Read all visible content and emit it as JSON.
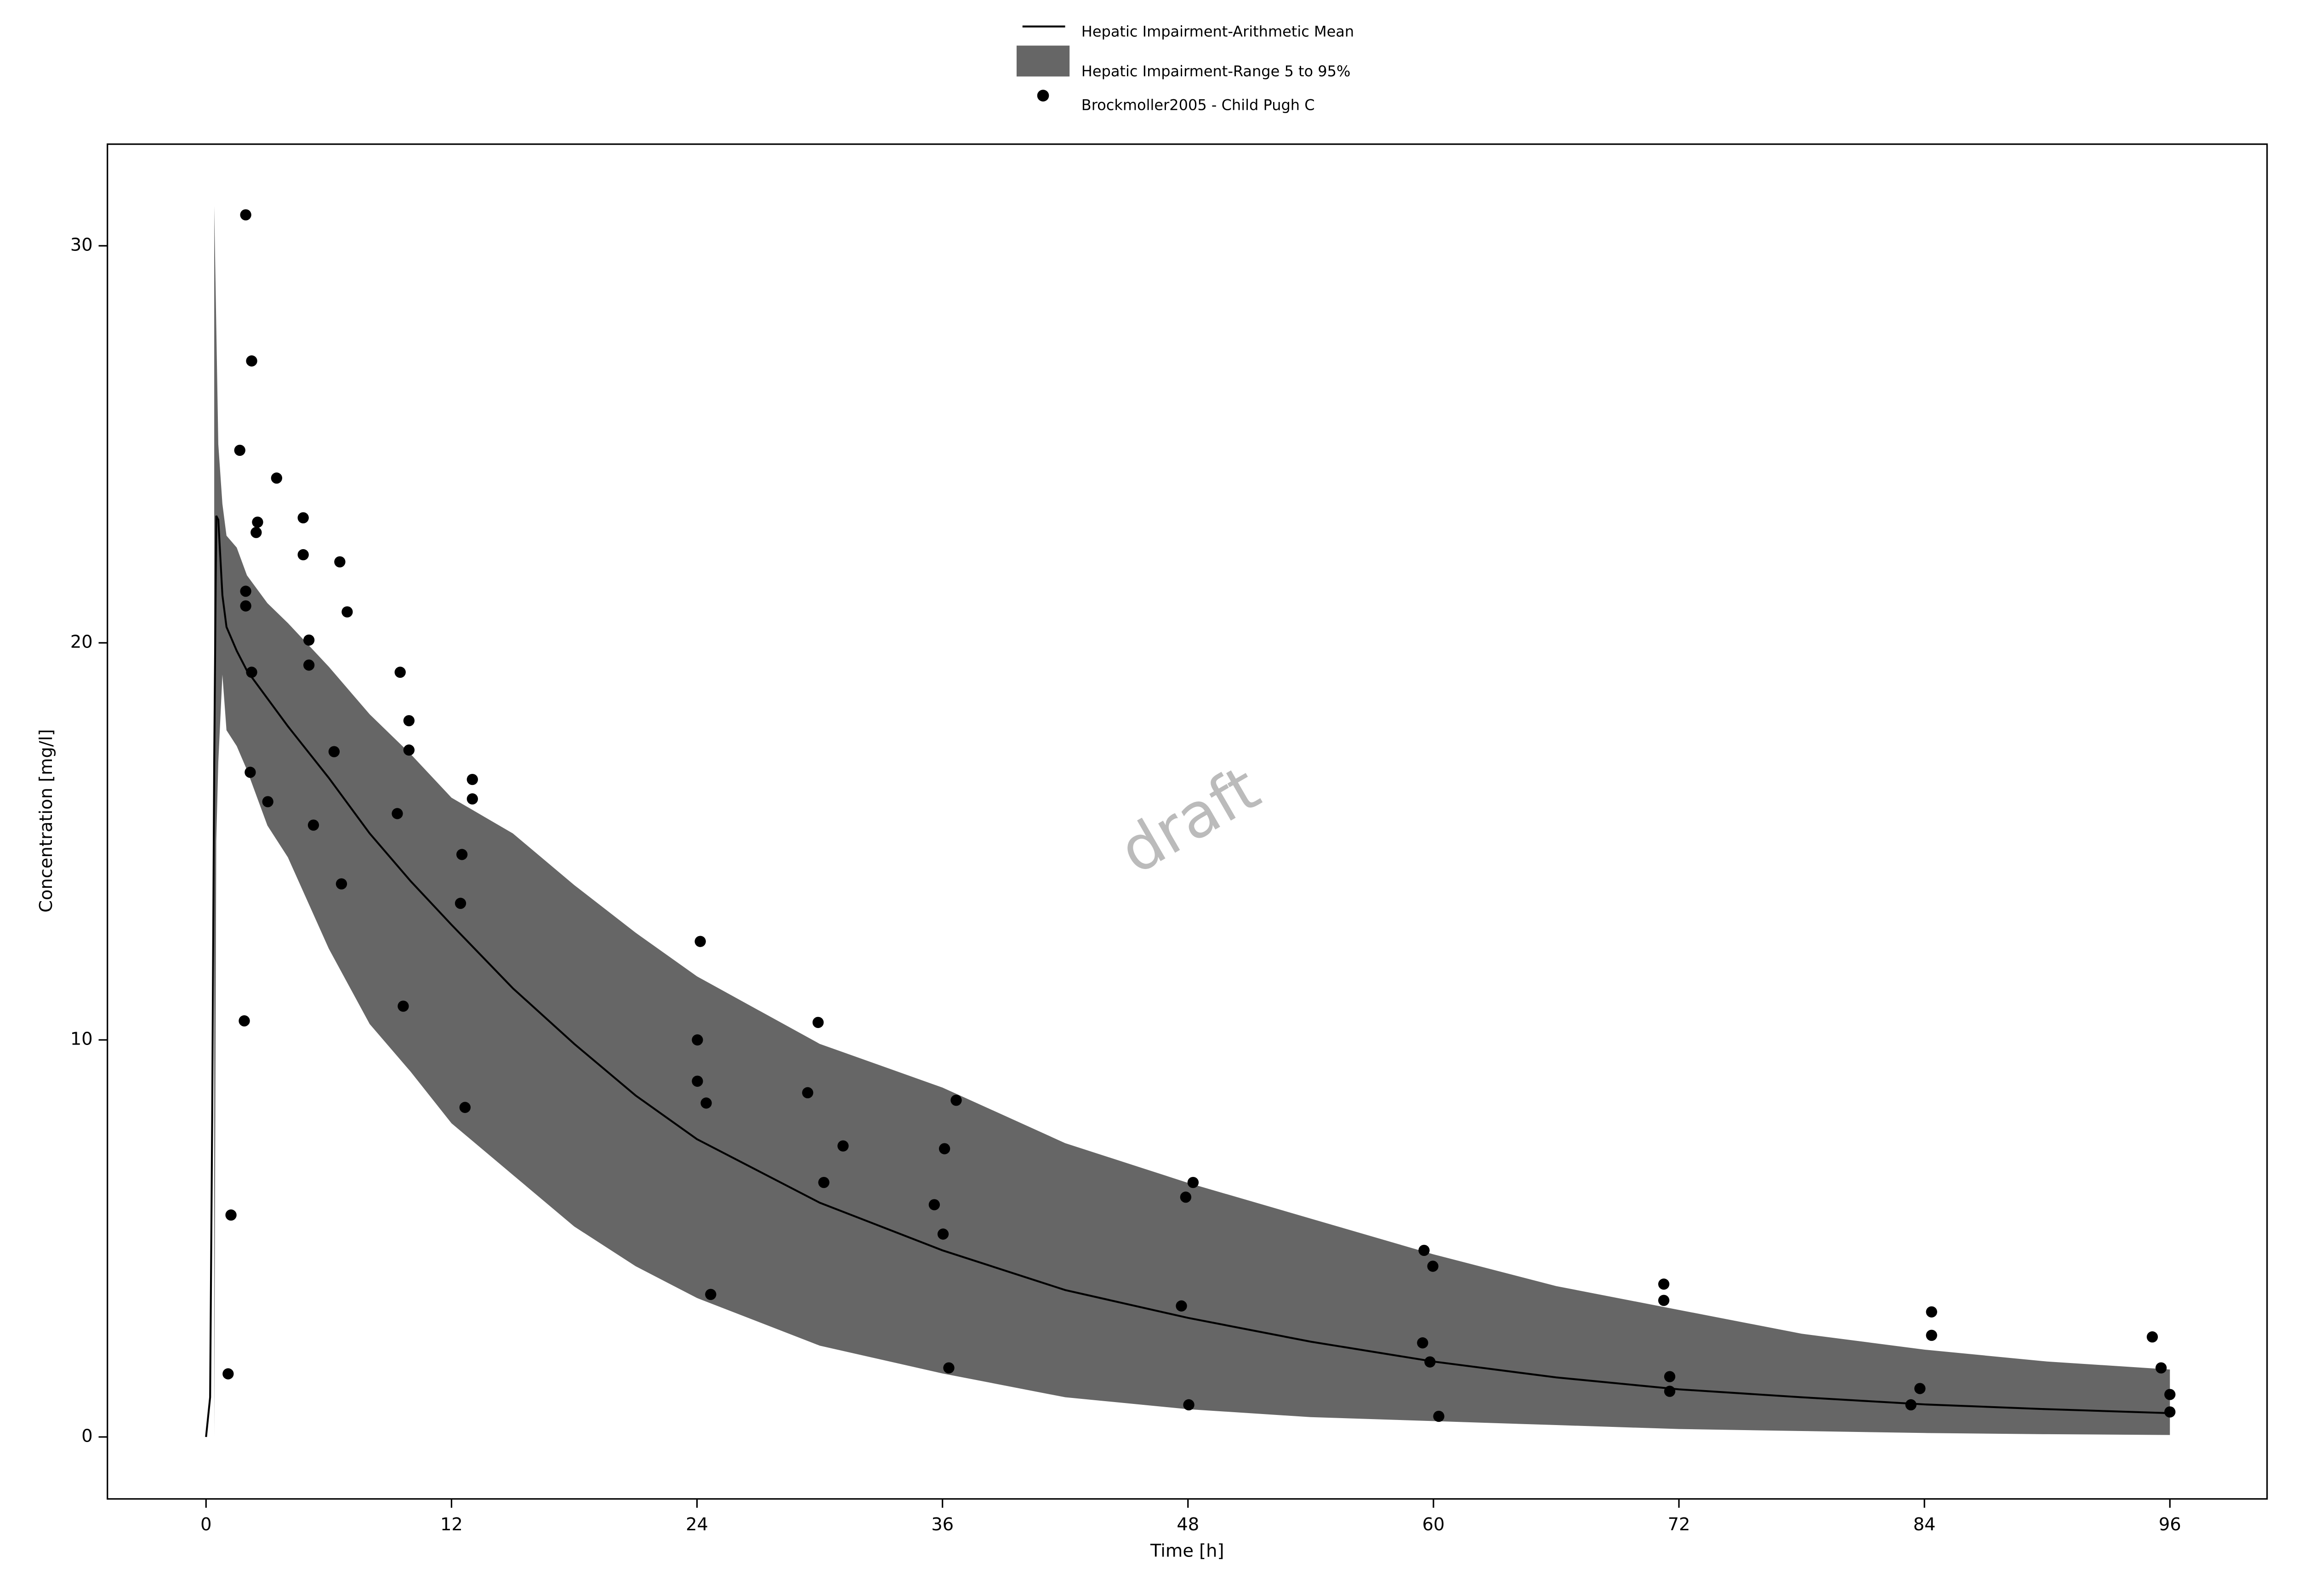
{
  "chart_data": {
    "type": "line",
    "x_label": "Time [h]",
    "y_label": "Concentration [mg/l]",
    "watermark": "draft",
    "xlim": [
      -4.82,
      100.75
    ],
    "ylim": [
      -1.56,
      32.56
    ],
    "xticks": [
      0,
      12,
      24,
      36,
      48,
      60,
      72,
      84,
      96
    ],
    "yticks": [
      0,
      10,
      20,
      30
    ],
    "grid": false,
    "legend": "top",
    "series": [
      {
        "name": "Hepatic Impairment-Arithmetic Mean",
        "color": "#000000",
        "kind": "line",
        "x": [
          0,
          0.2,
          0.3,
          0.4,
          0.5,
          0.6,
          0.8,
          1,
          1.5,
          2,
          3,
          4,
          6,
          8,
          10,
          12,
          15,
          18,
          21,
          24,
          30,
          36,
          42,
          48,
          54,
          60,
          66,
          72,
          78,
          84,
          90,
          96
        ],
        "y": [
          0,
          1,
          8,
          17,
          23.2,
          23.1,
          21.2,
          20.4,
          19.8,
          19.3,
          18.6,
          17.9,
          16.6,
          15.2,
          14.0,
          12.9,
          11.3,
          9.9,
          8.6,
          7.5,
          5.9,
          4.7,
          3.7,
          3.0,
          2.4,
          1.9,
          1.5,
          1.2,
          1.0,
          0.82,
          0.7,
          0.6
        ]
      },
      {
        "name": "Hepatic Impairment-Range 5 to 95%",
        "color": "#666666",
        "kind": "band",
        "x": [
          0.4,
          0.5,
          0.6,
          0.8,
          1,
          1.5,
          2,
          3,
          4,
          6,
          8,
          10,
          12,
          15,
          18,
          21,
          24,
          30,
          36,
          42,
          48,
          54,
          60,
          66,
          72,
          78,
          84,
          90,
          96
        ],
        "lower": [
          0,
          15,
          17,
          19.2,
          17.8,
          17.4,
          16.8,
          15.4,
          14.6,
          12.3,
          10.4,
          9.2,
          7.9,
          6.6,
          5.3,
          4.3,
          3.5,
          2.3,
          1.6,
          1.0,
          0.7,
          0.5,
          0.4,
          0.3,
          0.2,
          0.15,
          0.1,
          0.07,
          0.05
        ],
        "upper": [
          31,
          28,
          25,
          23.5,
          22.7,
          22.4,
          21.7,
          21,
          20.5,
          19.4,
          18.2,
          17.2,
          16.1,
          15.2,
          13.9,
          12.7,
          11.6,
          9.9,
          8.8,
          7.4,
          6.4,
          5.5,
          4.6,
          3.8,
          3.2,
          2.6,
          2.2,
          1.9,
          1.7
        ]
      },
      {
        "name": "Brockmoller2005 - Child Pugh C",
        "color": "#000000",
        "kind": "scatter",
        "x": [
          1.94,
          2.23,
          1.65,
          3.45,
          2.52,
          4.75,
          2.45,
          4.75,
          6.54,
          6.9,
          1.94,
          1.94,
          5.03,
          5.03,
          2.23,
          9.49,
          9.92,
          9.92,
          6.26,
          2.16,
          13.02,
          13.02,
          3.02,
          9.35,
          5.25,
          12.51,
          6.62,
          12.44,
          24.16,
          1.87,
          29.92,
          24.02,
          9.64,
          24.02,
          29.41,
          24.45,
          36.67,
          12.66,
          31.14,
          36.1,
          30.2,
          48.25,
          47.89,
          35.6,
          36.03,
          1.22,
          59.54,
          59.97,
          71.26,
          71.26,
          24.67,
          47.68,
          84.35,
          84.35,
          95.14,
          59.47,
          59.83,
          36.31,
          95.57,
          1.08,
          71.55,
          71.55,
          83.78,
          96.0,
          83.34,
          48.04,
          60.26,
          96.0
        ],
        "y": [
          30.78,
          27.1,
          24.85,
          24.15,
          23.04,
          23.15,
          22.78,
          22.22,
          22.04,
          20.78,
          21.3,
          20.93,
          20.07,
          19.44,
          19.26,
          19.26,
          18.04,
          17.3,
          17.26,
          16.74,
          16.56,
          16.07,
          16.0,
          15.7,
          15.41,
          14.67,
          13.93,
          13.44,
          12.48,
          10.48,
          10.44,
          10.0,
          10.85,
          8.96,
          8.67,
          8.41,
          8.48,
          8.3,
          7.33,
          7.26,
          6.41,
          6.41,
          6.04,
          5.85,
          5.11,
          5.59,
          4.7,
          4.3,
          3.85,
          3.44,
          3.59,
          3.3,
          3.15,
          2.56,
          2.52,
          2.37,
          1.89,
          1.74,
          1.74,
          1.59,
          1.52,
          1.15,
          1.22,
          1.07,
          0.81,
          0.81,
          0.52,
          0.63
        ]
      }
    ]
  }
}
